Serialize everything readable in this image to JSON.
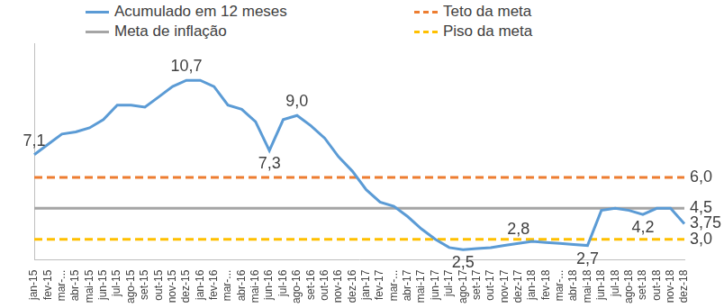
{
  "chart_data": {
    "type": "line",
    "categories": [
      "jan-15",
      "fev-15",
      "mar-...",
      "abr-15",
      "mai-15",
      "jun-15",
      "jul-15",
      "ago-15",
      "set-15",
      "out-15",
      "nov-15",
      "dez-15",
      "jan-16",
      "fev-16",
      "mar-...",
      "abr-16",
      "mai-16",
      "jun-16",
      "jul-16",
      "ago-16",
      "set-16",
      "out-16",
      "nov-16",
      "dez-16",
      "jan-17",
      "fev-17",
      "mar-...",
      "abr-17",
      "mai-17",
      "jun-17",
      "jul-17",
      "ago-17",
      "set-17",
      "out-17",
      "nov-17",
      "dez-17",
      "jan-18",
      "fev-18",
      "mar-...",
      "abr-18",
      "mai-18",
      "jun-18",
      "jul-18",
      "ago-18",
      "set-18",
      "out-18",
      "nov-18",
      "dez-18"
    ],
    "series": [
      {
        "name": "Acumulado em 12 meses",
        "color": "#5b9bd5",
        "line_style": "solid",
        "values": [
          7.1,
          7.6,
          8.1,
          8.2,
          8.4,
          8.8,
          9.5,
          9.5,
          9.4,
          9.9,
          10.4,
          10.7,
          10.7,
          10.4,
          9.5,
          9.3,
          8.7,
          7.3,
          8.8,
          9.0,
          8.5,
          7.9,
          7.0,
          6.3,
          5.4,
          4.8,
          4.6,
          4.1,
          3.5,
          3.0,
          2.6,
          2.5,
          2.55,
          2.6,
          2.7,
          2.8,
          2.9,
          2.85,
          2.8,
          2.75,
          2.7,
          4.4,
          4.5,
          4.4,
          4.2,
          4.5,
          4.5,
          3.75
        ],
        "value_labels": [
          "7,1",
          null,
          null,
          null,
          null,
          null,
          null,
          null,
          null,
          null,
          null,
          "10,7",
          null,
          null,
          null,
          null,
          null,
          "7,3",
          null,
          "9,0",
          null,
          null,
          null,
          null,
          null,
          null,
          null,
          null,
          null,
          null,
          null,
          "2,5",
          null,
          null,
          null,
          "2,8",
          null,
          null,
          null,
          null,
          "2,7",
          null,
          null,
          null,
          "4,2",
          null,
          null,
          "3,75"
        ]
      },
      {
        "name": "Teto da meta",
        "color": "#ed7d31",
        "line_style": "dashed",
        "values": [
          6,
          6,
          6,
          6,
          6,
          6,
          6,
          6,
          6,
          6,
          6,
          6,
          6,
          6,
          6,
          6,
          6,
          6,
          6,
          6,
          6,
          6,
          6,
          6,
          6,
          6,
          6,
          6,
          6,
          6,
          6,
          6,
          6,
          6,
          6,
          6,
          6,
          6,
          6,
          6,
          6,
          6,
          6,
          6,
          6,
          6,
          6,
          6
        ],
        "value_labels": [
          null,
          null,
          null,
          null,
          null,
          null,
          null,
          null,
          null,
          null,
          null,
          null,
          null,
          null,
          null,
          null,
          null,
          null,
          null,
          null,
          null,
          null,
          null,
          null,
          null,
          null,
          null,
          null,
          null,
          null,
          null,
          null,
          null,
          null,
          null,
          null,
          null,
          null,
          null,
          null,
          null,
          null,
          null,
          null,
          null,
          null,
          null,
          "6,0"
        ]
      },
      {
        "name": "Meta de inflação",
        "color": "#a5a5a5",
        "line_style": "solid",
        "values": [
          4.5,
          4.5,
          4.5,
          4.5,
          4.5,
          4.5,
          4.5,
          4.5,
          4.5,
          4.5,
          4.5,
          4.5,
          4.5,
          4.5,
          4.5,
          4.5,
          4.5,
          4.5,
          4.5,
          4.5,
          4.5,
          4.5,
          4.5,
          4.5,
          4.5,
          4.5,
          4.5,
          4.5,
          4.5,
          4.5,
          4.5,
          4.5,
          4.5,
          4.5,
          4.5,
          4.5,
          4.5,
          4.5,
          4.5,
          4.5,
          4.5,
          4.5,
          4.5,
          4.5,
          4.5,
          4.5,
          4.5,
          4.5
        ],
        "value_labels": [
          null,
          null,
          null,
          null,
          null,
          null,
          null,
          null,
          null,
          null,
          null,
          null,
          null,
          null,
          null,
          null,
          null,
          null,
          null,
          null,
          null,
          null,
          null,
          null,
          null,
          null,
          null,
          null,
          null,
          null,
          null,
          null,
          null,
          null,
          null,
          null,
          null,
          null,
          null,
          null,
          null,
          null,
          null,
          null,
          null,
          null,
          null,
          "4,5"
        ]
      },
      {
        "name": "Piso da meta",
        "color": "#ffc000",
        "line_style": "dashed",
        "values": [
          3,
          3,
          3,
          3,
          3,
          3,
          3,
          3,
          3,
          3,
          3,
          3,
          3,
          3,
          3,
          3,
          3,
          3,
          3,
          3,
          3,
          3,
          3,
          3,
          3,
          3,
          3,
          3,
          3,
          3,
          3,
          3,
          3,
          3,
          3,
          3,
          3,
          3,
          3,
          3,
          3,
          3,
          3,
          3,
          3,
          3,
          3,
          3
        ],
        "value_labels": [
          null,
          null,
          null,
          null,
          null,
          null,
          null,
          null,
          null,
          null,
          null,
          null,
          null,
          null,
          null,
          null,
          null,
          null,
          null,
          null,
          null,
          null,
          null,
          null,
          null,
          null,
          null,
          null,
          null,
          null,
          null,
          null,
          null,
          null,
          null,
          null,
          null,
          null,
          null,
          null,
          null,
          null,
          null,
          null,
          null,
          null,
          null,
          "3,0"
        ]
      }
    ],
    "ylim": [
      2,
      12.5
    ],
    "grid": false,
    "legend": "top",
    "tick_labels": "x",
    "data_labels": true
  }
}
